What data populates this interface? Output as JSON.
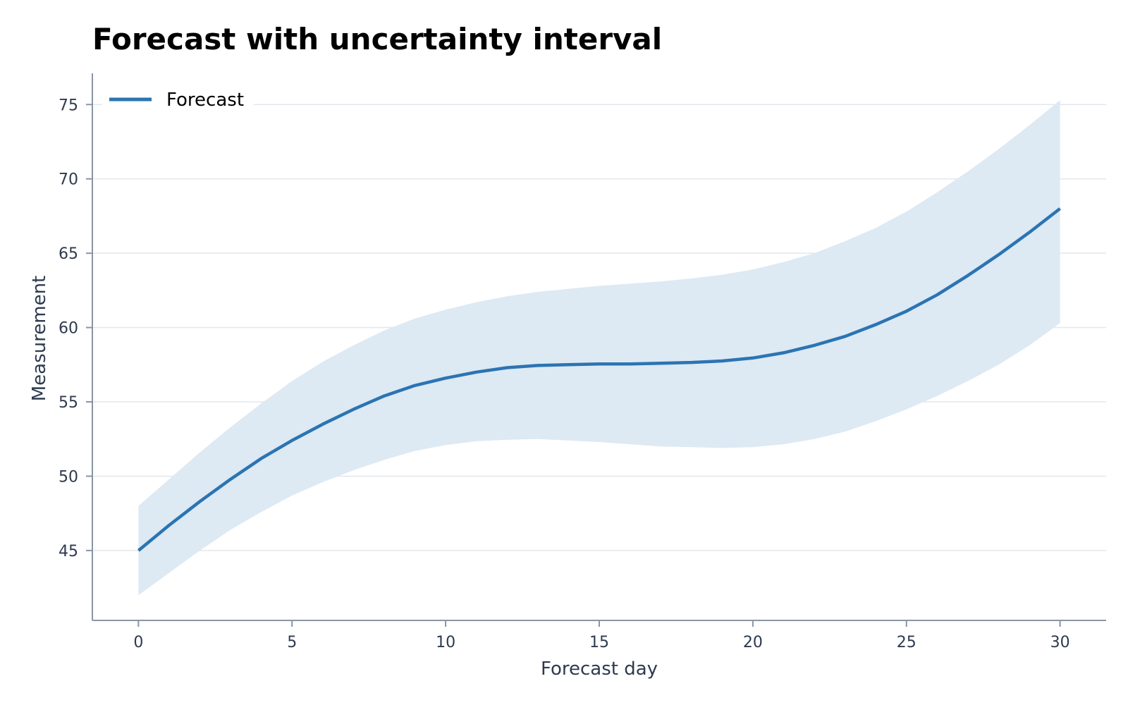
{
  "chart_data": {
    "type": "line",
    "title": "Forecast with uncertainty interval",
    "xlabel": "Forecast day",
    "ylabel": "Measurement",
    "xlim": [
      -1.5,
      31.5
    ],
    "ylim": [
      40.3,
      77.1
    ],
    "xticks": [
      0,
      5,
      10,
      15,
      20,
      25,
      30
    ],
    "yticks": [
      45,
      50,
      55,
      60,
      65,
      70,
      75
    ],
    "grid": "horizontal",
    "legend": {
      "placement": "top-left",
      "entries": [
        "Forecast"
      ]
    },
    "colors": {
      "line": "#2b74b3",
      "band": "#dde9f3",
      "grid": "#e3e7ec",
      "axis": "#8a94a6",
      "tick_text": "#2e3a4f",
      "title": "#000000"
    },
    "x": [
      0,
      1,
      2,
      3,
      4,
      5,
      6,
      7,
      8,
      9,
      10,
      11,
      12,
      13,
      14,
      15,
      16,
      17,
      18,
      19,
      20,
      21,
      22,
      23,
      24,
      25,
      26,
      27,
      28,
      29,
      30
    ],
    "series": [
      {
        "name": "Forecast",
        "values": [
          45.0,
          46.7,
          48.3,
          49.8,
          51.2,
          52.4,
          53.5,
          54.5,
          55.4,
          56.1,
          56.6,
          57.0,
          57.3,
          57.45,
          57.5,
          57.55,
          57.55,
          57.6,
          57.65,
          57.75,
          57.95,
          58.3,
          58.8,
          59.4,
          60.2,
          61.1,
          62.2,
          63.5,
          64.9,
          66.4,
          68.0
        ]
      }
    ],
    "interval": {
      "upper": [
        48.0,
        49.8,
        51.6,
        53.3,
        54.9,
        56.4,
        57.7,
        58.8,
        59.8,
        60.6,
        61.2,
        61.7,
        62.1,
        62.4,
        62.6,
        62.8,
        62.95,
        63.1,
        63.3,
        63.55,
        63.9,
        64.4,
        65.0,
        65.8,
        66.7,
        67.8,
        69.1,
        70.5,
        72.0,
        73.6,
        75.3
      ],
      "lower": [
        42.0,
        43.5,
        45.0,
        46.4,
        47.6,
        48.7,
        49.6,
        50.4,
        51.1,
        51.7,
        52.1,
        52.35,
        52.45,
        52.5,
        52.4,
        52.3,
        52.15,
        52.0,
        51.95,
        51.9,
        51.95,
        52.15,
        52.5,
        53.0,
        53.7,
        54.5,
        55.4,
        56.4,
        57.5,
        58.8,
        60.3
      ]
    }
  }
}
